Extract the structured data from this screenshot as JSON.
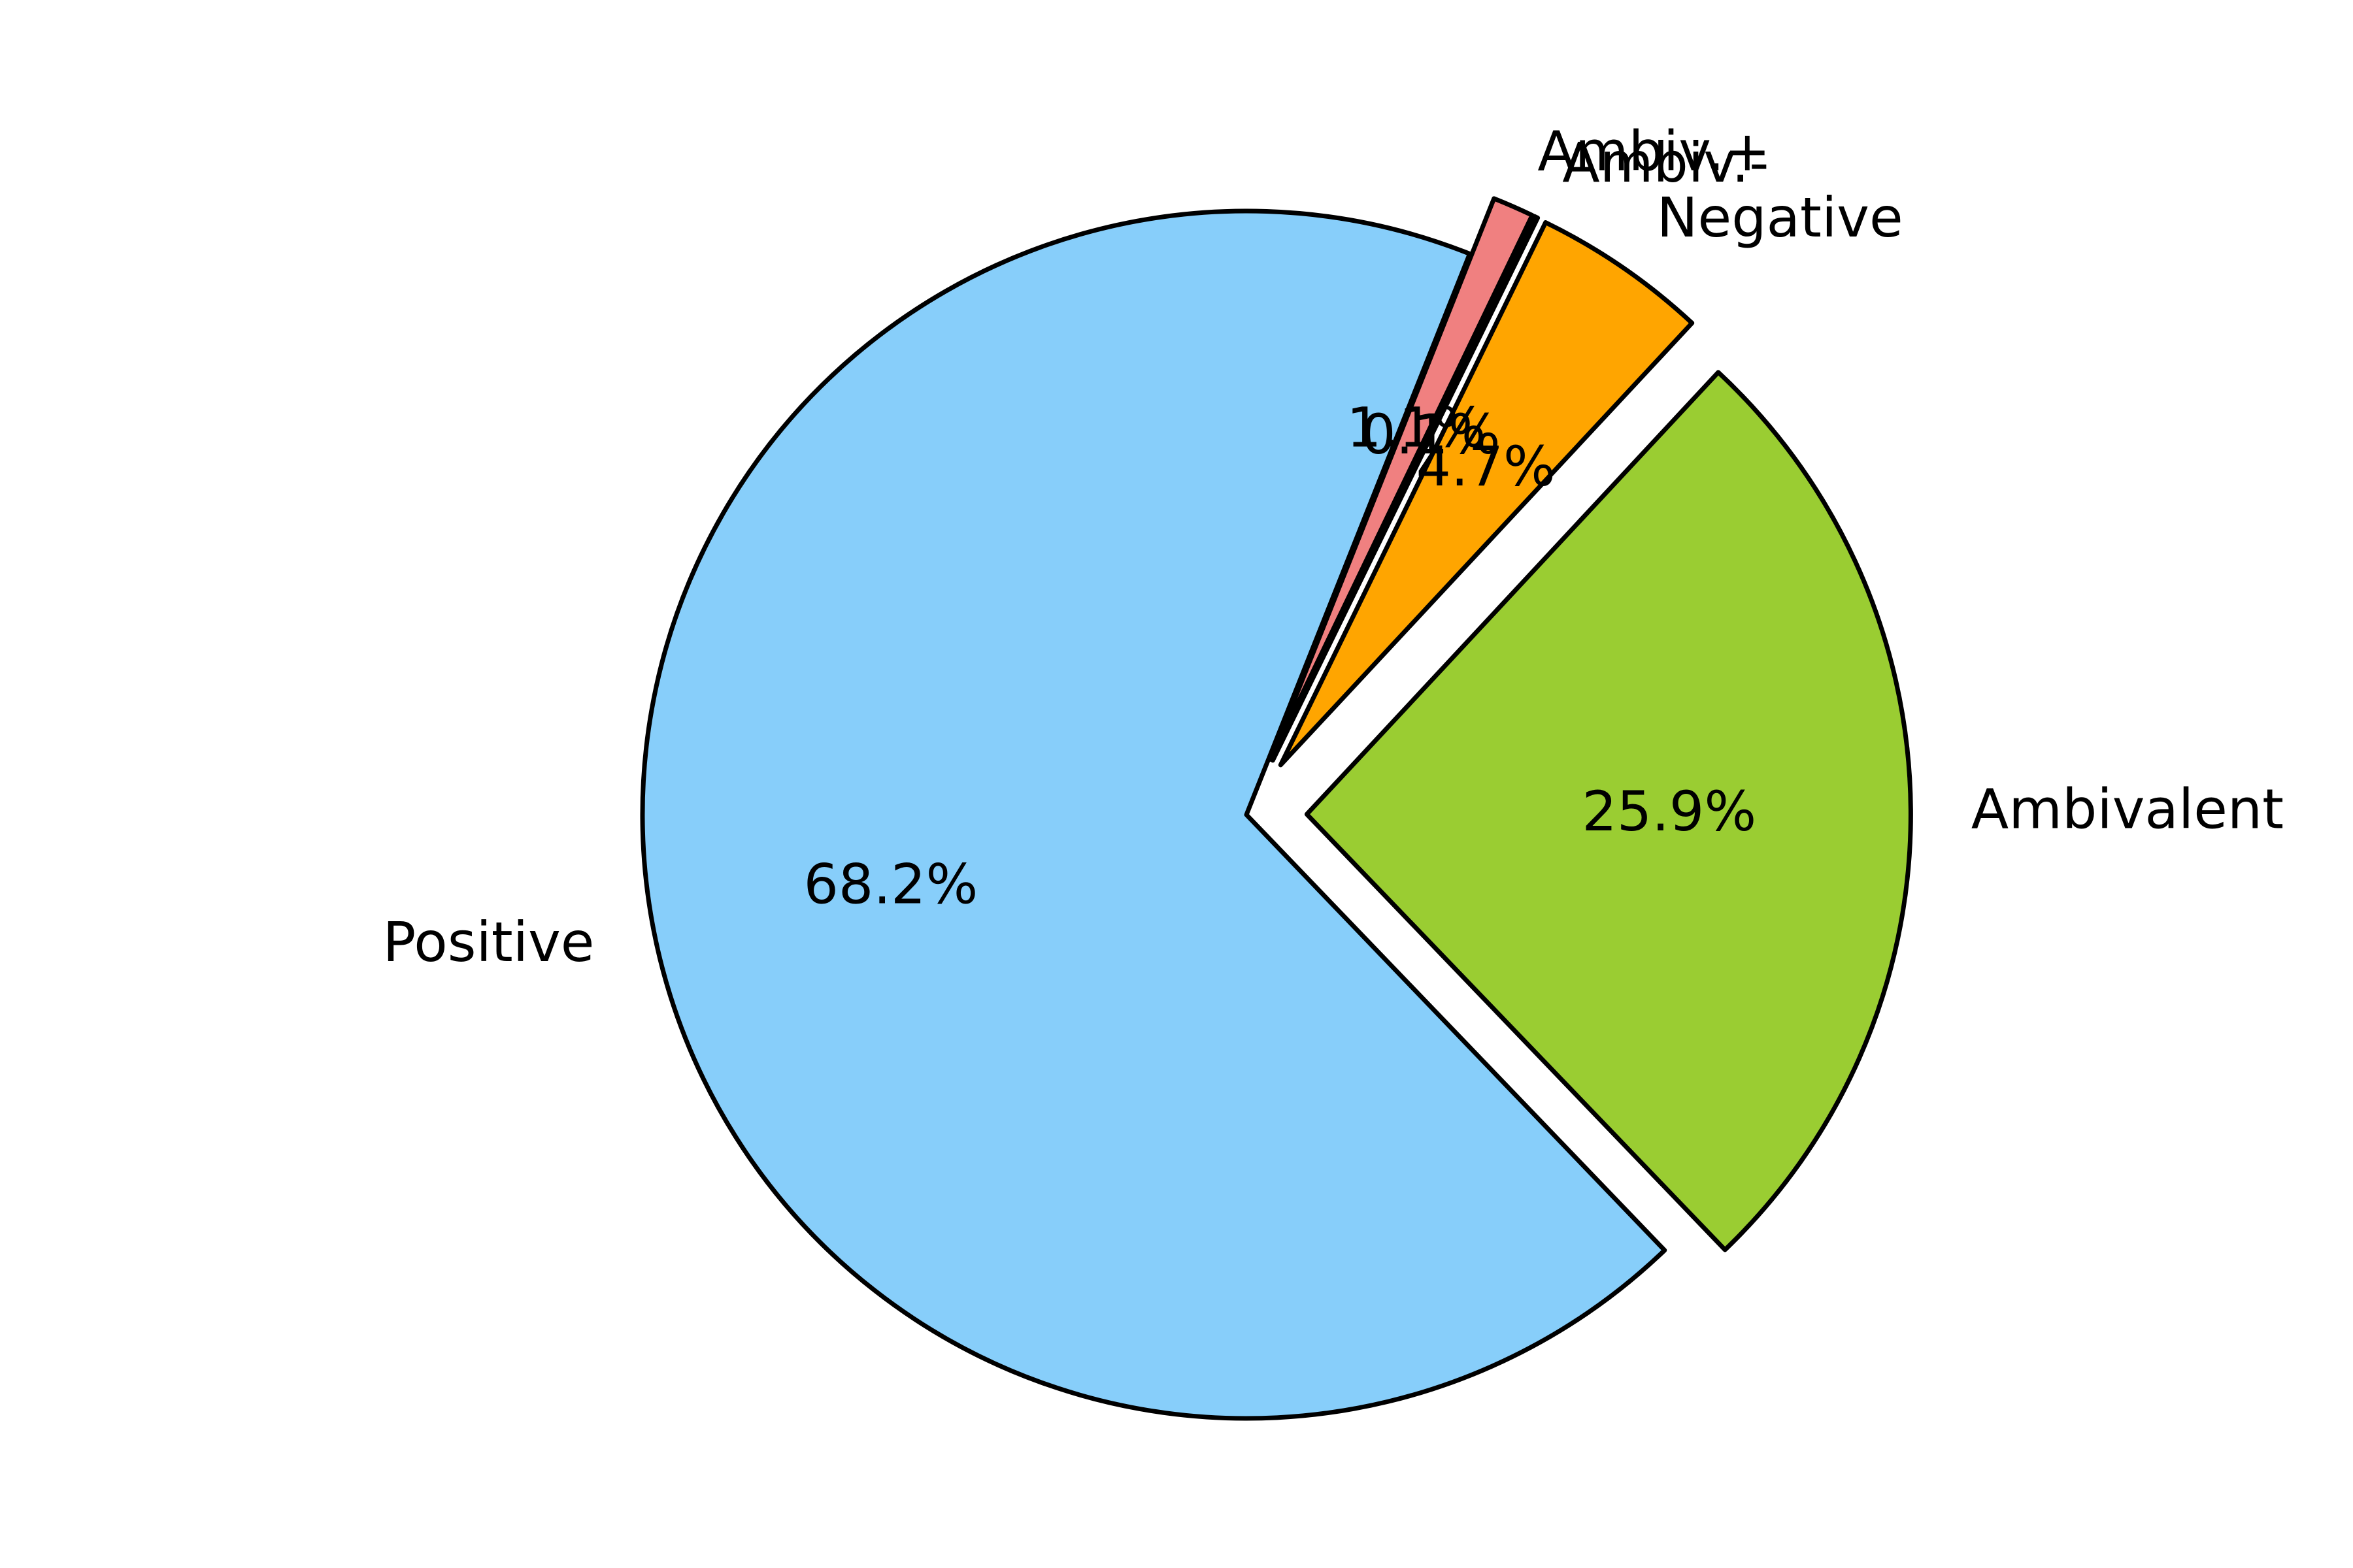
{
  "chart_data": {
    "type": "pie",
    "categories": [
      "Positive",
      "Ambivalent",
      "Negative",
      "Ambiv.-",
      "Ambiv.+"
    ],
    "values": [
      68.2,
      25.9,
      4.7,
      0.1,
      1.1
    ],
    "value_labels": [
      "68.2%",
      "25.9%",
      "4.7%",
      "0.1%",
      "1.1%"
    ],
    "colors": [
      "#87CEFA",
      "#9ACD32",
      "#FFA500",
      "#111111",
      "#F08080"
    ],
    "exploded": [
      "Ambivalent",
      "Negative",
      "Ambiv.-",
      "Ambiv.+"
    ],
    "start_angle_deg": 68.3,
    "direction": "counterclockwise",
    "title": "",
    "legend": "none"
  }
}
